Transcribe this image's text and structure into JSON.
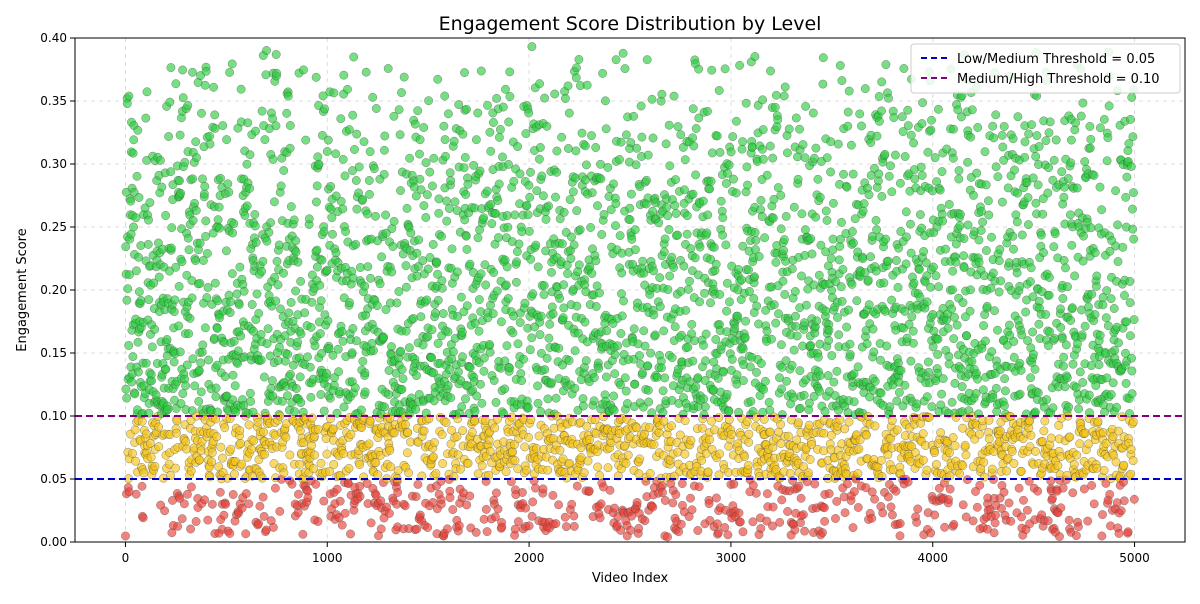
{
  "chart_data": {
    "type": "scatter",
    "title": "Engagement Score Distribution by Level",
    "xlabel": "Video Index",
    "ylabel": "Engagement Score",
    "xlim": [
      -250,
      5250
    ],
    "ylim": [
      0,
      0.4
    ],
    "x_ticks": [
      0,
      1000,
      2000,
      3000,
      4000,
      5000
    ],
    "x_tick_labels": [
      "0",
      "1000",
      "2000",
      "3000",
      "4000",
      "5000"
    ],
    "y_ticks": [
      0,
      0.05,
      0.1,
      0.15,
      0.2,
      0.25,
      0.3,
      0.35,
      0.4
    ],
    "y_tick_labels": [
      "0.00",
      "0.05",
      "0.10",
      "0.15",
      "0.20",
      "0.25",
      "0.30",
      "0.35",
      "0.40"
    ],
    "grid": true,
    "legend_position": "top-right",
    "n_points": 5000,
    "categories": [
      {
        "name": "Low",
        "range": [
          0,
          0.05
        ],
        "color": "#e8443a",
        "approx_count": 560
      },
      {
        "name": "Medium",
        "range": [
          0.05,
          0.1
        ],
        "color": "#f5c518",
        "approx_count": 1230
      },
      {
        "name": "High",
        "range": [
          0.1,
          0.4
        ],
        "color": "#2ecc40",
        "approx_count": 3210
      }
    ],
    "thresholds": [
      {
        "label": "Low/Medium Threshold = 0.05",
        "value": 0.05,
        "color": "#0000cc",
        "style": "dashed"
      },
      {
        "label": "Medium/High Threshold = 0.10",
        "value": 0.1,
        "color": "#800080",
        "style": "dashed"
      }
    ],
    "annotations": []
  }
}
